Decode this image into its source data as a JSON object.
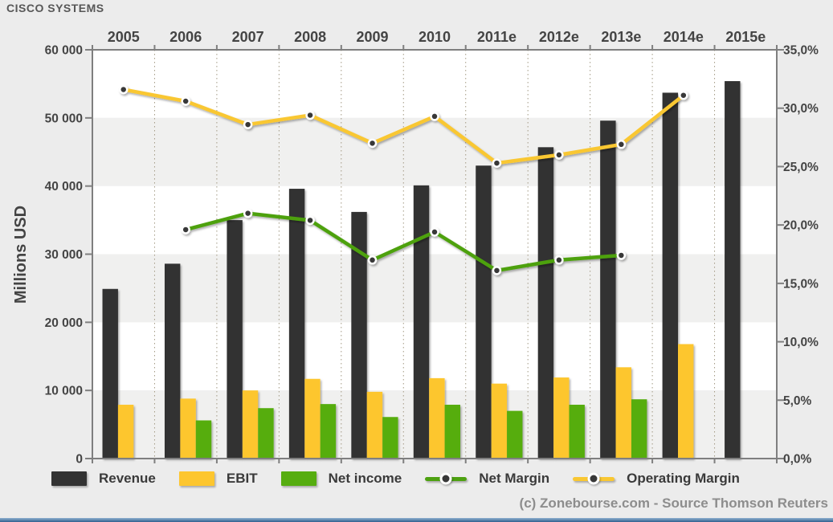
{
  "header": {
    "title": "CISCO SYSTEMS"
  },
  "footer": {
    "credit": "(c) Zonebourse.com - Source Thomson Reuters"
  },
  "chart_data": {
    "type": "combo-bar-line",
    "categories": [
      "2005",
      "2006",
      "2007",
      "2008",
      "2009",
      "2010",
      "2011e",
      "2012e",
      "2013e",
      "2014e",
      "2015e"
    ],
    "series": [
      {
        "name": "Revenue",
        "type": "bar",
        "axis": "left",
        "color": "#333333",
        "values": [
          24900,
          28600,
          35000,
          39600,
          36200,
          40100,
          43000,
          45700,
          49600,
          53700,
          55400
        ]
      },
      {
        "name": "EBIT",
        "type": "bar",
        "axis": "left",
        "color": "#fdc62f",
        "values": [
          7900,
          8800,
          10000,
          11700,
          9800,
          11800,
          11000,
          11900,
          13400,
          16800,
          null
        ]
      },
      {
        "name": "Net income",
        "type": "bar",
        "axis": "left",
        "color": "#56ad10",
        "values": [
          null,
          5600,
          7400,
          8000,
          6100,
          7900,
          7000,
          7900,
          8700,
          null,
          null
        ]
      },
      {
        "name": "Net Margin",
        "type": "line",
        "axis": "right",
        "color": "#4da110",
        "values": [
          null,
          19.6,
          21.0,
          20.4,
          17.0,
          19.4,
          16.1,
          17.0,
          17.4,
          null,
          null
        ]
      },
      {
        "name": "Operating Margin",
        "type": "line",
        "axis": "right",
        "color": "#f9c732",
        "values": [
          31.6,
          30.6,
          28.6,
          29.4,
          27.0,
          29.3,
          25.3,
          26.0,
          26.9,
          31.1,
          null
        ]
      }
    ],
    "left_axis": {
      "label": "Millions USD",
      "min": 0,
      "max": 60000,
      "tick_labels": [
        "60 000",
        "50 000",
        "40 000",
        "30 000",
        "20 000",
        "10 000",
        "0"
      ]
    },
    "right_axis": {
      "label": "",
      "min": 0,
      "max": 35,
      "tick_labels": [
        "35,0%",
        "30,0%",
        "25,0%",
        "20,0%",
        "15,0%",
        "10,0%",
        "5,0%",
        "0,0%"
      ]
    },
    "legend_position": "bottom",
    "grid": "vertical dotted lines per year; horizontal alternating white/grey bands every 10 000"
  }
}
